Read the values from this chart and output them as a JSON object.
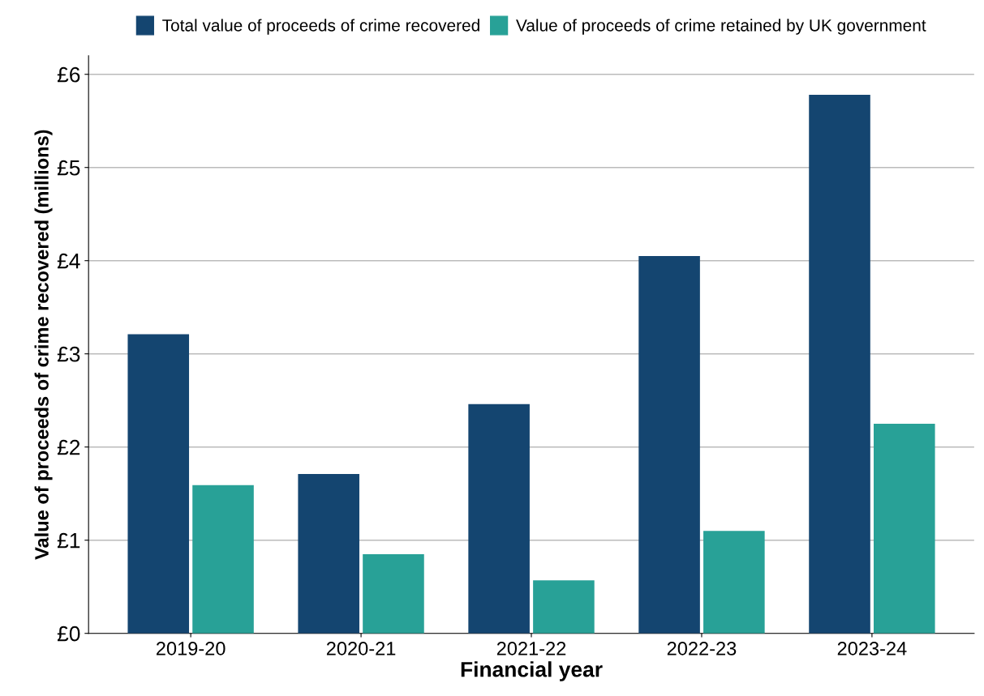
{
  "chart_data": {
    "type": "bar",
    "xlabel": "Financial year",
    "ylabel": "Value of proceeds of crime recovered (millions)",
    "categories": [
      "2019-20",
      "2020-21",
      "2021-22",
      "2022-23",
      "2023-24"
    ],
    "series": [
      {
        "name": "Total value of proceeds of crime recovered",
        "color": "#144570",
        "values": [
          3.21,
          1.71,
          2.46,
          4.05,
          5.78
        ]
      },
      {
        "name": "Value of proceeds of crime retained by UK government",
        "color": "#28a197",
        "values": [
          1.59,
          0.85,
          0.57,
          1.1,
          2.25
        ]
      }
    ],
    "ylim": [
      0,
      6.2
    ],
    "yticks": [
      {
        "value": 0,
        "label": "£0"
      },
      {
        "value": 1,
        "label": "£1"
      },
      {
        "value": 2,
        "label": "£2"
      },
      {
        "value": 3,
        "label": "£3"
      },
      {
        "value": 4,
        "label": "£4"
      },
      {
        "value": 5,
        "label": "£5"
      },
      {
        "value": 6,
        "label": "£6"
      }
    ],
    "grid": "y",
    "legend": "top"
  }
}
